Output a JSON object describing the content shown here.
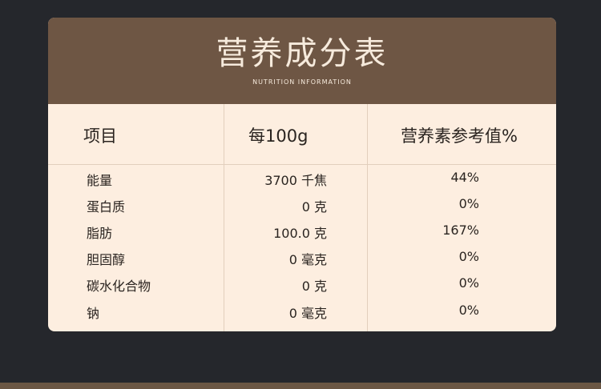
{
  "title": "营养成分表",
  "subtitle": "NUTRITION INFORMATION",
  "columns": [
    "项目",
    "每100g",
    "营养素参考值%"
  ],
  "rows": [
    {
      "item": "能量",
      "per100g": "3700 千焦",
      "nrv": "44%"
    },
    {
      "item": "蛋白质",
      "per100g": "0 克",
      "nrv": "0%"
    },
    {
      "item": "脂肪",
      "per100g": "100.0 克",
      "nrv": "167%"
    },
    {
      "item": "胆固醇",
      "per100g": "0 毫克",
      "nrv": "0%"
    },
    {
      "item": "碳水化合物",
      "per100g": "0 克",
      "nrv": "0%"
    },
    {
      "item": "钠",
      "per100g": "0 毫克",
      "nrv": "0%"
    }
  ]
}
